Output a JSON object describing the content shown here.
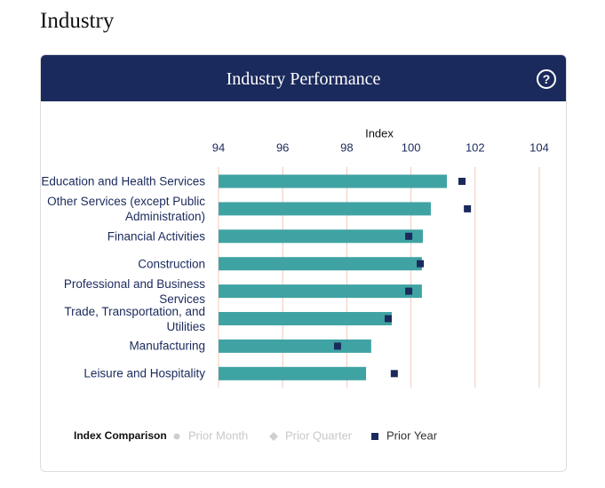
{
  "page_title": "Industry",
  "chart_data": {
    "type": "hbar",
    "title": "Industry Performance",
    "xlabel": "Index",
    "categories": [
      "Education and Health Services",
      "Other Services (except Public Administration)",
      "Financial Activities",
      "Construction",
      "Professional and Business Services",
      "Trade, Transportation, and Utilities",
      "Manufacturing",
      "Leisure and Hospitality"
    ],
    "values": [
      101.12,
      100.62,
      100.37,
      100.34,
      100.34,
      99.4,
      98.76,
      98.6
    ],
    "color": "#3fa3a3",
    "xlim": [
      94,
      104
    ],
    "xticks": [
      94,
      96,
      98,
      100,
      102,
      104
    ],
    "grid": true,
    "legend": {
      "title": "Index Comparison",
      "items": [
        {
          "name": "Prior Month",
          "color": "#cfcfcf",
          "marker": "circle",
          "active": false
        },
        {
          "name": "Prior Quarter",
          "color": "#cfcfcf",
          "marker": "diamond",
          "active": false
        },
        {
          "name": "Prior Year",
          "color": "#1b2a5c",
          "marker": "square",
          "active": true,
          "values": [
            101.59,
            101.76,
            99.93,
            100.29,
            99.93,
            99.29,
            97.71,
            99.48
          ]
        }
      ]
    }
  }
}
